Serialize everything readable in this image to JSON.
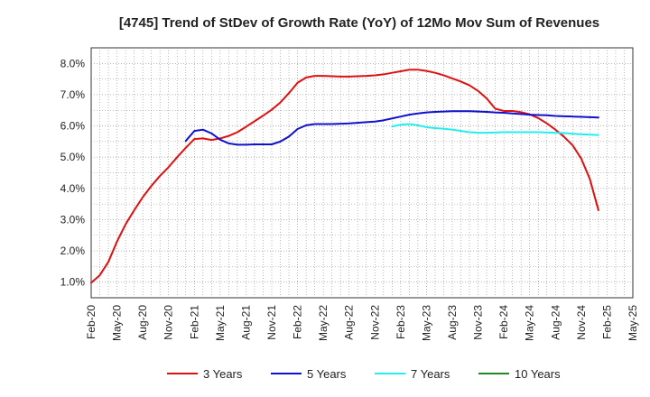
{
  "chart_data": {
    "type": "line",
    "title": "[4745]  Trend of StDev of Growth Rate (YoY) of 12Mo Mov Sum of Revenues",
    "xlabel": "",
    "ylabel": "",
    "ylim": [
      0.5,
      8.5
    ],
    "y_ticks": [
      1.0,
      2.0,
      3.0,
      4.0,
      5.0,
      6.0,
      7.0,
      8.0
    ],
    "y_tick_labels": [
      "1.0%",
      "2.0%",
      "3.0%",
      "4.0%",
      "5.0%",
      "6.0%",
      "7.0%",
      "8.0%"
    ],
    "x_tick_labels": [
      "Feb-20",
      "May-20",
      "Aug-20",
      "Nov-20",
      "Feb-21",
      "May-21",
      "Aug-21",
      "Nov-21",
      "Feb-22",
      "May-22",
      "Aug-22",
      "Nov-22",
      "Feb-23",
      "May-23",
      "Aug-23",
      "Nov-23",
      "Feb-24",
      "May-24",
      "Aug-24",
      "Nov-24",
      "Feb-25",
      "May-25"
    ],
    "x_range_months": [
      0,
      63
    ],
    "grid": true,
    "legend_position": "bottom",
    "series": [
      {
        "name": "3 Years",
        "color": "#dd1111",
        "points": [
          [
            0,
            0.98
          ],
          [
            1,
            1.22
          ],
          [
            2,
            1.65
          ],
          [
            3,
            2.3
          ],
          [
            4,
            2.85
          ],
          [
            5,
            3.3
          ],
          [
            6,
            3.72
          ],
          [
            7,
            4.08
          ],
          [
            8,
            4.4
          ],
          [
            9,
            4.68
          ],
          [
            10,
            5.0
          ],
          [
            11,
            5.3
          ],
          [
            12,
            5.58
          ],
          [
            13,
            5.6
          ],
          [
            14,
            5.55
          ],
          [
            15,
            5.6
          ],
          [
            16,
            5.68
          ],
          [
            17,
            5.8
          ],
          [
            18,
            5.97
          ],
          [
            19,
            6.15
          ],
          [
            20,
            6.33
          ],
          [
            21,
            6.52
          ],
          [
            22,
            6.75
          ],
          [
            23,
            7.05
          ],
          [
            24,
            7.38
          ],
          [
            25,
            7.55
          ],
          [
            26,
            7.6
          ],
          [
            27,
            7.6
          ],
          [
            28,
            7.59
          ],
          [
            29,
            7.58
          ],
          [
            30,
            7.58
          ],
          [
            31,
            7.59
          ],
          [
            32,
            7.6
          ],
          [
            33,
            7.62
          ],
          [
            34,
            7.65
          ],
          [
            35,
            7.7
          ],
          [
            36,
            7.75
          ],
          [
            37,
            7.8
          ],
          [
            38,
            7.8
          ],
          [
            39,
            7.76
          ],
          [
            40,
            7.7
          ],
          [
            41,
            7.62
          ],
          [
            42,
            7.52
          ],
          [
            43,
            7.42
          ],
          [
            44,
            7.3
          ],
          [
            45,
            7.12
          ],
          [
            46,
            6.88
          ],
          [
            47,
            6.55
          ],
          [
            48,
            6.48
          ],
          [
            49,
            6.48
          ],
          [
            50,
            6.44
          ],
          [
            51,
            6.37
          ],
          [
            52,
            6.25
          ],
          [
            53,
            6.08
          ],
          [
            54,
            5.88
          ],
          [
            55,
            5.65
          ],
          [
            56,
            5.38
          ],
          [
            57,
            4.95
          ],
          [
            58,
            4.3
          ],
          [
            59,
            3.3
          ]
        ]
      },
      {
        "name": "5 Years",
        "color": "#1111cc",
        "points": [
          [
            11,
            5.52
          ],
          [
            12,
            5.84
          ],
          [
            13,
            5.88
          ],
          [
            14,
            5.76
          ],
          [
            15,
            5.56
          ],
          [
            16,
            5.44
          ],
          [
            17,
            5.4
          ],
          [
            18,
            5.4
          ],
          [
            19,
            5.41
          ],
          [
            20,
            5.41
          ],
          [
            21,
            5.41
          ],
          [
            22,
            5.5
          ],
          [
            23,
            5.66
          ],
          [
            24,
            5.9
          ],
          [
            25,
            6.02
          ],
          [
            26,
            6.06
          ],
          [
            27,
            6.06
          ],
          [
            28,
            6.06
          ],
          [
            29,
            6.07
          ],
          [
            30,
            6.08
          ],
          [
            31,
            6.1
          ],
          [
            32,
            6.12
          ],
          [
            33,
            6.14
          ],
          [
            34,
            6.18
          ],
          [
            35,
            6.24
          ],
          [
            36,
            6.3
          ],
          [
            37,
            6.36
          ],
          [
            38,
            6.4
          ],
          [
            39,
            6.43
          ],
          [
            40,
            6.45
          ],
          [
            41,
            6.46
          ],
          [
            42,
            6.47
          ],
          [
            43,
            6.47
          ],
          [
            44,
            6.47
          ],
          [
            45,
            6.46
          ],
          [
            46,
            6.45
          ],
          [
            47,
            6.43
          ],
          [
            48,
            6.42
          ],
          [
            49,
            6.4
          ],
          [
            50,
            6.38
          ],
          [
            51,
            6.36
          ],
          [
            52,
            6.35
          ],
          [
            53,
            6.34
          ],
          [
            54,
            6.32
          ],
          [
            55,
            6.31
          ],
          [
            56,
            6.3
          ],
          [
            57,
            6.29
          ],
          [
            58,
            6.28
          ],
          [
            59,
            6.27
          ]
        ]
      },
      {
        "name": "7 Years",
        "color": "#22eeee",
        "points": [
          [
            35,
            5.98
          ],
          [
            36,
            6.04
          ],
          [
            37,
            6.06
          ],
          [
            38,
            6.02
          ],
          [
            39,
            5.96
          ],
          [
            40,
            5.93
          ],
          [
            41,
            5.91
          ],
          [
            42,
            5.88
          ],
          [
            43,
            5.84
          ],
          [
            44,
            5.8
          ],
          [
            45,
            5.78
          ],
          [
            46,
            5.78
          ],
          [
            47,
            5.79
          ],
          [
            48,
            5.8
          ],
          [
            49,
            5.8
          ],
          [
            50,
            5.8
          ],
          [
            51,
            5.8
          ],
          [
            52,
            5.8
          ],
          [
            53,
            5.79
          ],
          [
            54,
            5.78
          ],
          [
            55,
            5.77
          ],
          [
            56,
            5.75
          ],
          [
            57,
            5.73
          ],
          [
            58,
            5.72
          ],
          [
            59,
            5.71
          ]
        ]
      },
      {
        "name": "10 Years",
        "color": "#228822",
        "points": []
      }
    ]
  }
}
